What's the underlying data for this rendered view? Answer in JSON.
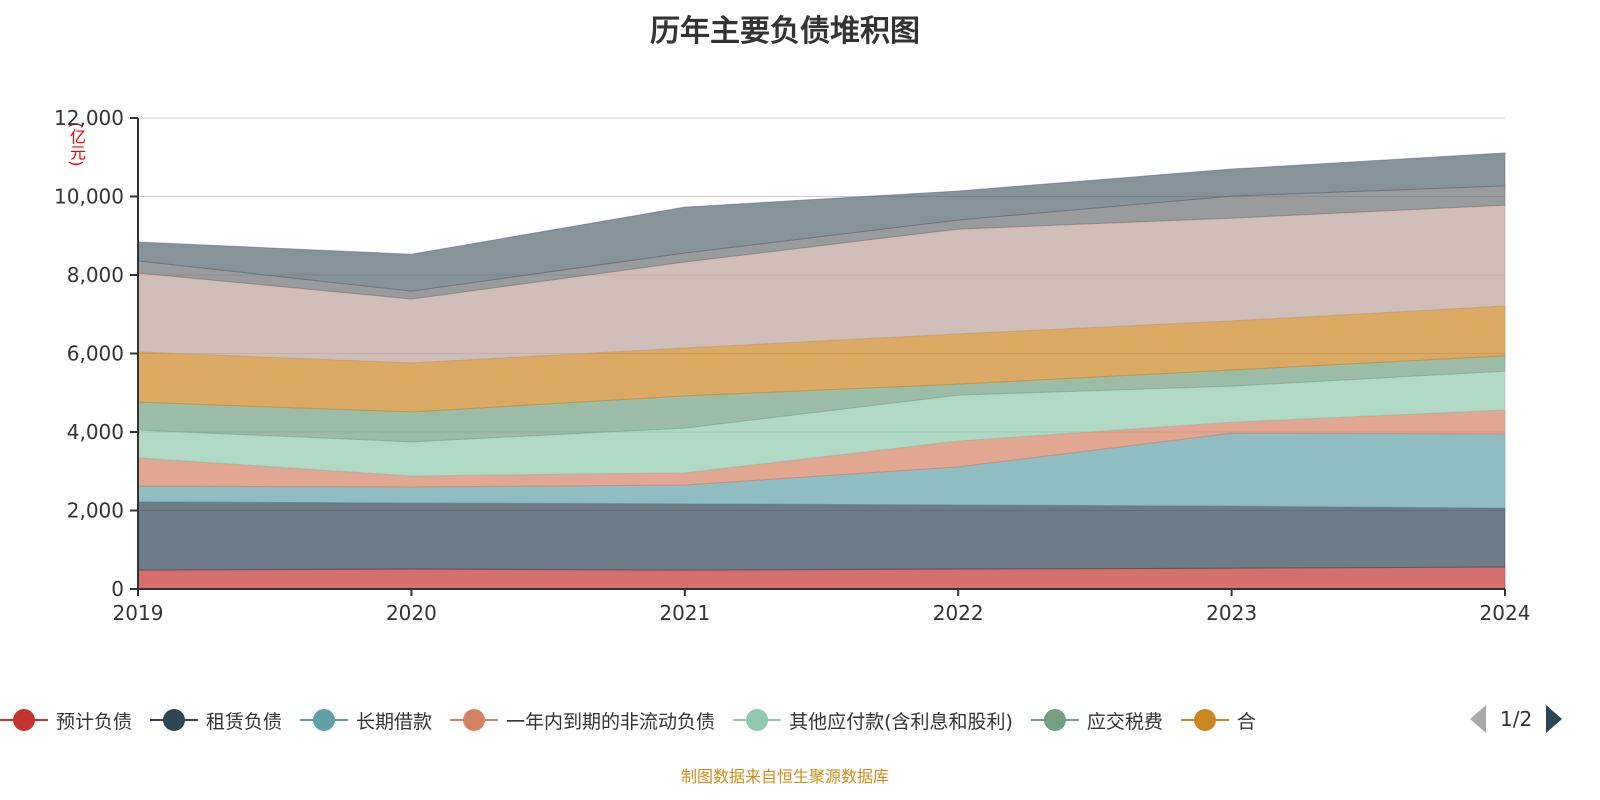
{
  "chart_data": {
    "type": "area",
    "title": "历年主要负债堆积图",
    "ylabel": "(亿元)",
    "ylim": [
      0,
      12000
    ],
    "yticks": [
      "0",
      "2,000",
      "4,000",
      "6,000",
      "8,000",
      "10,000",
      "12,000"
    ],
    "categories": [
      "2019",
      "2020",
      "2021",
      "2022",
      "2023",
      "2024"
    ],
    "stacked": true,
    "series": [
      {
        "name": "预计负债",
        "color": "#c23531",
        "values": [
          480,
          510,
          480,
          510,
          530,
          560
        ]
      },
      {
        "name": "租赁负债",
        "color": "#2f4554",
        "values": [
          1740,
          1680,
          1690,
          1630,
          1580,
          1500
        ]
      },
      {
        "name": "长期借款",
        "color": "#61a0a8",
        "values": [
          400,
          410,
          480,
          970,
          1860,
          1890
        ]
      },
      {
        "name": "一年内到期的非流动负债",
        "color": "#d48265",
        "values": [
          720,
          280,
          310,
          660,
          280,
          610
        ]
      },
      {
        "name": "其他应付款(含利息和股利)",
        "color": "#91c7ae",
        "values": [
          710,
          870,
          1140,
          1170,
          920,
          990
        ]
      },
      {
        "name": "应交税费",
        "color": "#749f83",
        "values": [
          710,
          760,
          820,
          280,
          410,
          390
        ]
      },
      {
        "name": "合",
        "color": "#ca8622",
        "values": [
          1280,
          1250,
          1220,
          1280,
          1250,
          1270
        ]
      },
      {
        "name": "",
        "color": "#bda29a",
        "values": [
          2010,
          1630,
          2190,
          2670,
          2620,
          2570
        ]
      },
      {
        "name": "",
        "color": "#6e7074",
        "values": [
          310,
          200,
          230,
          230,
          560,
          490
        ]
      },
      {
        "name": "",
        "color": "#546570",
        "values": [
          480,
          940,
          1170,
          740,
          690,
          840
        ]
      }
    ],
    "legend_position": "bottom"
  },
  "legend": {
    "page": "1/2"
  },
  "footer": "制图数据来自恒生聚源数据库"
}
